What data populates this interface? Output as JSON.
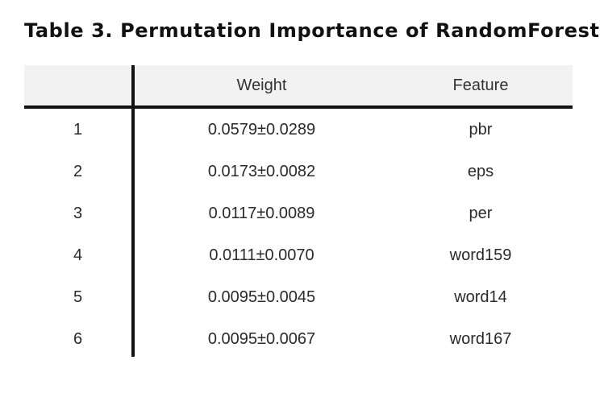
{
  "title": "Table 3. Permutation Importance of RandomForest",
  "columns": {
    "index": "",
    "weight": "Weight",
    "feature": "Feature"
  },
  "rows": [
    {
      "index": "1",
      "weight": "0.0579±0.0289",
      "feature": "pbr"
    },
    {
      "index": "2",
      "weight": "0.0173±0.0082",
      "feature": "eps"
    },
    {
      "index": "3",
      "weight": "0.0117±0.0089",
      "feature": "per"
    },
    {
      "index": "4",
      "weight": "0.0111±0.0070",
      "feature": "word159"
    },
    {
      "index": "5",
      "weight": "0.0095±0.0045",
      "feature": "word14"
    },
    {
      "index": "6",
      "weight": "0.0095±0.0067",
      "feature": "word167"
    }
  ]
}
